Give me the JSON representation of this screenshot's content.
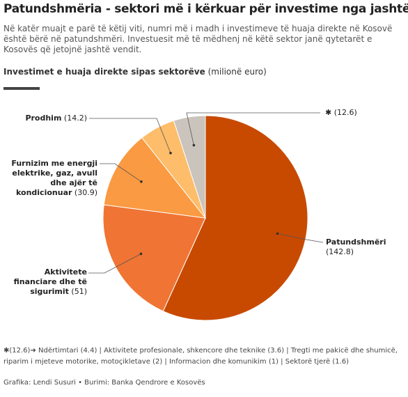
{
  "chart_data": {
    "type": "pie",
    "title": "Patundshmëria - sektori më i kërkuar për investime nga jashtë",
    "description": "Në katër muajt e parë të këtij viti, numri më i madh i investimeve të huaja direkte në Kosovë është bërë në patundshmëri. Investuesit më të mëdhenj në këtë sektor janë qytetarët e Kosovës që jetojnë jashtë vendit.",
    "heading": "Investimet e huaja direkte sipas sektorëve",
    "heading_unit": "(milionë euro)",
    "categories": [
      "Patundshmëri",
      "Aktivitete financiare dhe të sigurimit",
      "Furnizim me energji elektrike, gaz, avull dhe ajër të kondicionuar",
      "Prodhim",
      "✱"
    ],
    "values": [
      142.8,
      51,
      30.9,
      14.2,
      12.6
    ],
    "value_labels": [
      "(142.8)",
      "(51)",
      "(30.9)",
      "(14.2)",
      "(12.6)"
    ],
    "colors": [
      "#c84a00",
      "#f07433",
      "#fa9a42",
      "#fdbd6a",
      "#cbc4bc"
    ],
    "footnote": "✱(12.6)➜ Ndërtimtari (4.4) | Aktivitete profesionale, shkencore dhe teknike (3.6) | Tregti me pakicë dhe shumicë, riparim i mjeteve motorike, motoçikletave (2) | Informacion dhe komunikim (1) | Sektorë tjerë (1.6)",
    "source": "Grafika: Lendi Susuri • Burimi: Banka Qendrore e Kosovës"
  }
}
